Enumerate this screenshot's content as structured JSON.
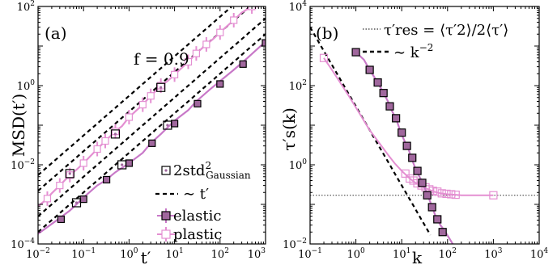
{
  "chart_data": [
    {
      "type": "line",
      "panel_label": "(a)",
      "annotation": "f = 0.9",
      "xlabel": "t′",
      "ylabel": "MSD(t′)",
      "x_scale": "log",
      "y_scale": "log",
      "xlim": [
        0.01,
        1000
      ],
      "ylim": [
        0.0001,
        100
      ],
      "x_ticks": [
        {
          "base": "10",
          "exp": "−2",
          "value": 0.01
        },
        {
          "base": "10",
          "exp": "−1",
          "value": 0.1
        },
        {
          "base": "10",
          "exp": "0",
          "value": 1
        },
        {
          "base": "10",
          "exp": "1",
          "value": 10
        },
        {
          "base": "10",
          "exp": "2",
          "value": 100
        },
        {
          "base": "10",
          "exp": "3",
          "value": 1000
        }
      ],
      "y_ticks": [
        {
          "base": "10",
          "exp": "−4",
          "value": 0.0001
        },
        {
          "base": "10",
          "exp": "−2",
          "value": 0.01
        },
        {
          "base": "10",
          "exp": "0",
          "value": 1
        },
        {
          "base": "10",
          "exp": "2",
          "value": 100
        }
      ],
      "legend": {
        "placement": "lower-right",
        "entries": [
          {
            "text": "2std",
            "sup": "2",
            "sub": "Gaussian",
            "marker": "open-square-dot"
          },
          {
            "text": "∼ t′",
            "marker": "dashed-line"
          },
          {
            "text": "elastic",
            "marker": "filled-square-errorbar"
          },
          {
            "text": "plastic",
            "marker": "open-square-errorbar"
          }
        ]
      },
      "colors": {
        "plastic": "#e48fd2",
        "elastic": "#c878c8",
        "elastic_fill": "#a0679d",
        "edge": "#000000",
        "reference": "#000000"
      },
      "series": [
        {
          "name": "elastic",
          "x": [
            0.01,
            0.02,
            0.03,
            0.05,
            0.07,
            0.1,
            0.2,
            0.3,
            0.5,
            1,
            2,
            3,
            5,
            10,
            20,
            30,
            60,
            100,
            200,
            400,
            1000
          ],
          "y": [
            0.00018,
            0.00032,
            0.00045,
            0.0007,
            0.001,
            0.0015,
            0.003,
            0.004,
            0.0065,
            0.011,
            0.02,
            0.035,
            0.06,
            0.13,
            0.24,
            0.4,
            0.8,
            1.3,
            2.5,
            5,
            13
          ],
          "markers_x": [
            0.032,
            0.1,
            0.32,
            1,
            3.2,
            10,
            32,
            100,
            320,
            1000
          ],
          "markers_y": [
            0.00042,
            0.00135,
            0.0042,
            0.011,
            0.035,
            0.11,
            0.35,
            1.1,
            3.5,
            12
          ]
        },
        {
          "name": "plastic",
          "x": [
            0.01,
            0.015,
            0.02,
            0.03,
            0.05,
            0.07,
            0.1,
            0.2,
            0.3,
            0.5,
            0.7,
            1,
            2,
            3,
            5,
            7,
            10,
            20,
            30,
            50,
            70,
            100,
            200,
            300,
            500,
            700
          ],
          "y": [
            0.0009,
            0.0013,
            0.0019,
            0.003,
            0.0055,
            0.0075,
            0.011,
            0.025,
            0.04,
            0.07,
            0.095,
            0.16,
            0.33,
            0.55,
            1.0,
            1.3,
            1.9,
            4.0,
            6.5,
            11,
            15,
            22,
            45,
            70,
            100,
            100
          ],
          "markers_x": [
            0.016,
            0.03,
            0.05,
            0.1,
            0.2,
            0.3,
            0.5,
            1,
            2,
            3,
            5,
            10,
            20,
            30,
            50,
            100,
            200,
            500
          ],
          "markers_y": [
            0.0014,
            0.003,
            0.0055,
            0.011,
            0.025,
            0.04,
            0.07,
            0.16,
            0.33,
            0.55,
            1.0,
            1.9,
            4.0,
            6.5,
            11,
            22,
            45,
            100
          ]
        },
        {
          "name": "2std²_Gaussian (elastic)",
          "markers_x": [
            0.07,
            0.7,
            7
          ],
          "markers_y": [
            0.0011,
            0.01,
            0.1
          ]
        },
        {
          "name": "2std²_Gaussian (plastic)",
          "markers_x": [
            0.05,
            0.5,
            5
          ],
          "markers_y": [
            0.006,
            0.06,
            0.9
          ]
        }
      ],
      "reference_lines": [
        {
          "slope": 1,
          "through": [
            0.01,
            0.0002
          ]
        },
        {
          "slope": 1,
          "through": [
            0.01,
            0.0005
          ]
        },
        {
          "slope": 1,
          "through": [
            0.01,
            0.0022
          ]
        },
        {
          "slope": 1,
          "through": [
            0.01,
            0.0055
          ]
        }
      ]
    },
    {
      "type": "line",
      "panel_label": "(b)",
      "xlabel": "k",
      "ylabel": "τ′s(k)",
      "x_scale": "log",
      "y_scale": "log",
      "xlim": [
        0.1,
        10000
      ],
      "ylim": [
        0.01,
        10000
      ],
      "x_ticks": [
        {
          "base": "10",
          "exp": "−1",
          "value": 0.1
        },
        {
          "base": "10",
          "exp": "0",
          "value": 1
        },
        {
          "base": "10",
          "exp": "1",
          "value": 10
        },
        {
          "base": "10",
          "exp": "2",
          "value": 100
        },
        {
          "base": "10",
          "exp": "3",
          "value": 1000
        },
        {
          "base": "10",
          "exp": "4",
          "value": 10000
        }
      ],
      "y_ticks": [
        {
          "base": "10",
          "exp": "−2",
          "value": 0.01
        },
        {
          "base": "10",
          "exp": "0",
          "value": 1
        },
        {
          "base": "10",
          "exp": "2",
          "value": 100
        },
        {
          "base": "10",
          "exp": "4",
          "value": 10000
        }
      ],
      "legend": {
        "placement": "top-right",
        "entries": [
          {
            "text": "τ′res = ⟨τ′2⟩/2⟨τ′⟩",
            "marker": "dotted-line"
          },
          {
            "text": "∼ k",
            "sup": "−2",
            "marker": "dashed-line"
          }
        ]
      },
      "colors": {
        "plastic": "#e48fd2",
        "elastic": "#c878c8",
        "elastic_fill": "#a0679d",
        "edge": "#000000",
        "reference": "#000000",
        "residual": "#333333"
      },
      "tau_res": 0.17,
      "series": [
        {
          "name": "elastic",
          "x": [
            1,
            1.5,
            2,
            3,
            4,
            5,
            6,
            7.5,
            9,
            11,
            14,
            17,
            21,
            27,
            35,
            44,
            55,
            70,
            90,
            130
          ],
          "y": [
            700,
            450,
            250,
            120,
            65,
            40,
            24,
            15,
            8,
            4.5,
            2.5,
            1.3,
            0.7,
            0.4,
            0.2,
            0.1,
            0.05,
            0.03,
            0.02,
            0.01
          ],
          "markers_x": [
            1,
            2,
            3,
            4,
            5.5,
            7.5,
            10,
            13,
            17,
            22,
            28,
            36,
            46,
            60,
            78
          ],
          "markers_y": [
            700,
            250,
            120,
            65,
            30,
            15,
            6.5,
            3,
            1.5,
            0.7,
            0.35,
            0.17,
            0.085,
            0.042,
            0.02
          ]
        },
        {
          "name": "plastic",
          "x": [
            0.2,
            0.3,
            0.5,
            0.7,
            1,
            2,
            3,
            5,
            7,
            10,
            15,
            20,
            30,
            50,
            70,
            100,
            150,
            200,
            400,
            1000
          ],
          "y": [
            500,
            250,
            100,
            55,
            28,
            7.5,
            4,
            1.8,
            1.1,
            0.7,
            0.45,
            0.35,
            0.27,
            0.21,
            0.19,
            0.18,
            0.175,
            0.17,
            0.17,
            0.17
          ],
          "markers_x": [
            0.2,
            12,
            15,
            18,
            22,
            27,
            33,
            40,
            48,
            60,
            75,
            95,
            120,
            150,
            1000
          ],
          "markers_y": [
            500,
            0.6,
            0.45,
            0.4,
            0.34,
            0.3,
            0.27,
            0.24,
            0.22,
            0.21,
            0.19,
            0.185,
            0.18,
            0.175,
            0.17
          ]
        }
      ],
      "reference_lines": [
        {
          "slope": -2,
          "through": [
            0.1,
            3000
          ],
          "style": "dashed"
        }
      ]
    }
  ]
}
